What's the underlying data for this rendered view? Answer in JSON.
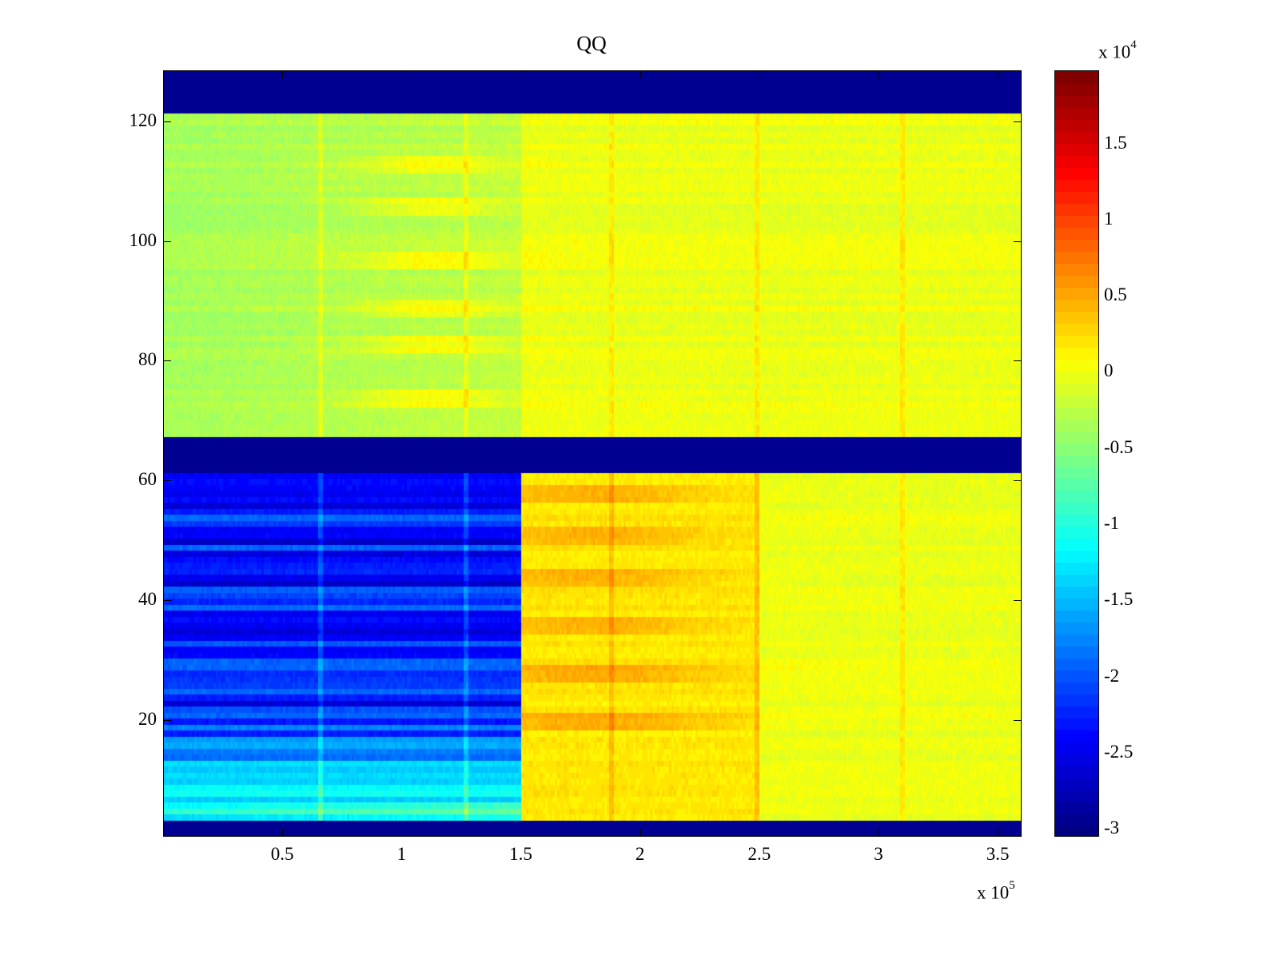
{
  "chart_data": {
    "type": "heatmap",
    "title": "QQ",
    "xlabel": "",
    "ylabel": "",
    "x_exponent_label": "x 10",
    "x_exponent": "5",
    "colorbar_exponent_label": "x 10",
    "colorbar_exponent": "4",
    "xlim": [
      0,
      3.6
    ],
    "ylim": [
      0.5,
      128.5
    ],
    "clim": [
      -3.05,
      1.98
    ],
    "colormap": "jet",
    "colormap_levels": 64,
    "xticks": [
      0.5,
      1,
      1.5,
      2,
      2.5,
      3,
      3.5
    ],
    "xtick_labels": [
      "0.5",
      "1",
      "1.5",
      "2",
      "2.5",
      "3",
      "3.5"
    ],
    "yticks": [
      20,
      40,
      60,
      80,
      100,
      120
    ],
    "ytick_labels": [
      "20",
      "40",
      "60",
      "80",
      "100",
      "120"
    ],
    "colorbar_ticks": [
      -3,
      -2.5,
      -2,
      -1.5,
      -1,
      -0.5,
      0,
      0.5,
      1,
      1.5
    ],
    "colorbar_tick_labels": [
      "-3",
      "-2.5",
      "-2",
      "-1.5",
      "-1",
      "-0.5",
      "0",
      "0.5",
      "1",
      "1.5"
    ],
    "regions": [
      {
        "rows": [
          1,
          3
        ],
        "x": [
          0,
          3.6
        ],
        "mean": -3.0
      },
      {
        "rows": [
          4,
          61
        ],
        "x": [
          0,
          1.5
        ],
        "mean": -1.9,
        "note": "blue block, lighter toward low rows"
      },
      {
        "rows": [
          4,
          61
        ],
        "x": [
          1.5,
          2.5
        ],
        "mean": 0.2
      },
      {
        "rows": [
          4,
          61
        ],
        "x": [
          2.5,
          3.6
        ],
        "mean": 0.0
      },
      {
        "rows": [
          62,
          67
        ],
        "x": [
          0,
          3.6
        ],
        "mean": -3.0
      },
      {
        "rows": [
          68,
          121
        ],
        "x": [
          0,
          1.5
        ],
        "mean": -0.2
      },
      {
        "rows": [
          68,
          121
        ],
        "x": [
          1.5,
          3.6
        ],
        "mean": 0.0
      },
      {
        "rows": [
          122,
          128
        ],
        "x": [
          0,
          3.6
        ],
        "mean": -3.0
      }
    ],
    "hot_rows_top": [
      74,
      83,
      89,
      97,
      106,
      113
    ],
    "hot_rows_bottom": [
      20,
      28,
      36,
      44,
      51,
      58
    ],
    "vertical_streaks_x": [
      0.66,
      1.27,
      1.88,
      2.49,
      3.1
    ]
  }
}
